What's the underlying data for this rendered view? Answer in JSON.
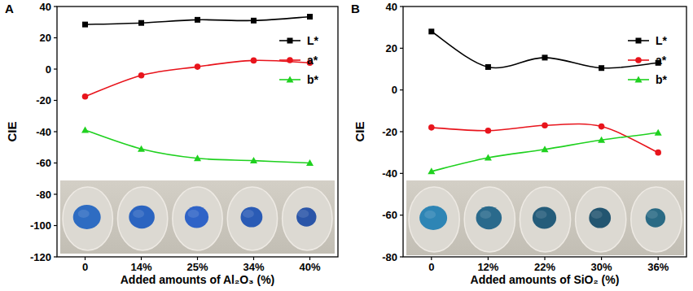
{
  "chart_data": [
    {
      "type": "line",
      "title": "A",
      "x_label": "Added amounts of Al₂O₃ (%)",
      "y_label": "CIE",
      "categories": [
        "0",
        "14%",
        "25%",
        "34%",
        "40%"
      ],
      "series": [
        {
          "name": "L*",
          "color": "#000000",
          "marker": "square",
          "values": [
            28.5,
            29.5,
            31.5,
            31,
            33.5
          ]
        },
        {
          "name": "a*",
          "color": "#e8141c",
          "marker": "circle",
          "values": [
            -17.5,
            -4,
            1.5,
            5.5,
            4
          ]
        },
        {
          "name": "b*",
          "color": "#1fd11f",
          "marker": "triangle",
          "values": [
            -39,
            -51,
            -57,
            -58.5,
            -60
          ]
        }
      ],
      "ylim": [
        -120,
        40
      ],
      "yticks": [
        -120,
        -100,
        -80,
        -60,
        -40,
        -20,
        0,
        20,
        40
      ],
      "grid": false,
      "legend": "right"
    },
    {
      "type": "line",
      "title": "B",
      "x_label": "Added amounts of SiO₂ (%)",
      "y_label": "CIE",
      "categories": [
        "0",
        "12%",
        "22%",
        "30%",
        "36%"
      ],
      "series": [
        {
          "name": "L*",
          "color": "#000000",
          "marker": "square",
          "values": [
            28,
            11,
            15.5,
            10.5,
            13
          ]
        },
        {
          "name": "a*",
          "color": "#e8141c",
          "marker": "circle",
          "values": [
            -18,
            -19.5,
            -17,
            -17.5,
            -30
          ]
        },
        {
          "name": "b*",
          "color": "#1fd11f",
          "marker": "triangle",
          "values": [
            -39,
            -32.5,
            -28.5,
            -24,
            -20.5
          ]
        }
      ],
      "ylim": [
        -80,
        40
      ],
      "yticks": [
        -80,
        -60,
        -40,
        -20,
        0,
        20,
        40
      ],
      "grid": false,
      "legend": "right"
    }
  ]
}
